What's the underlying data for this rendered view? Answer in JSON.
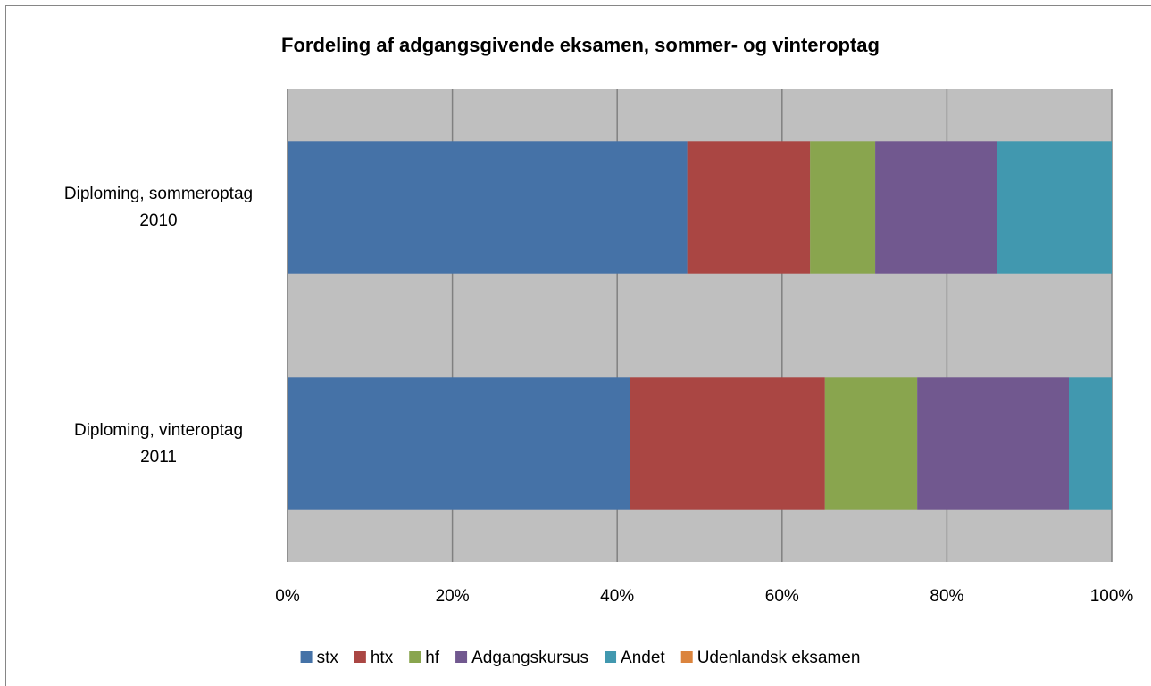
{
  "chart_data": {
    "type": "stacked-bar-horizontal",
    "title": "Fordeling af adgangsgivende eksamen, sommer- og vinteroptag",
    "categories": [
      "Diploming, sommeroptag 2010",
      "Diploming, vinteroptag 2011"
    ],
    "series": [
      {
        "name": "stx",
        "color": "#4572a7",
        "values": [
          48.5,
          41.6
        ]
      },
      {
        "name": "htx",
        "color": "#aa4643",
        "values": [
          14.9,
          23.6
        ]
      },
      {
        "name": "hf",
        "color": "#89a54e",
        "values": [
          7.9,
          11.2
        ]
      },
      {
        "name": "Adgangskursus",
        "color": "#71588f",
        "values": [
          14.8,
          18.4
        ]
      },
      {
        "name": "Andet",
        "color": "#4198af",
        "values": [
          13.9,
          5.2
        ]
      },
      {
        "name": "Udenlandsk eksamen",
        "color": "#db843d",
        "values": [
          0,
          0
        ]
      }
    ],
    "xlim": [
      0,
      100
    ],
    "xticks": [
      {
        "value": 0,
        "label": "0%"
      },
      {
        "value": 20,
        "label": "20%"
      },
      {
        "value": 40,
        "label": "40%"
      },
      {
        "value": 60,
        "label": "60%"
      },
      {
        "value": 80,
        "label": "80%"
      },
      {
        "value": 100,
        "label": "100%"
      }
    ],
    "grid": true,
    "legend": "bottom"
  }
}
